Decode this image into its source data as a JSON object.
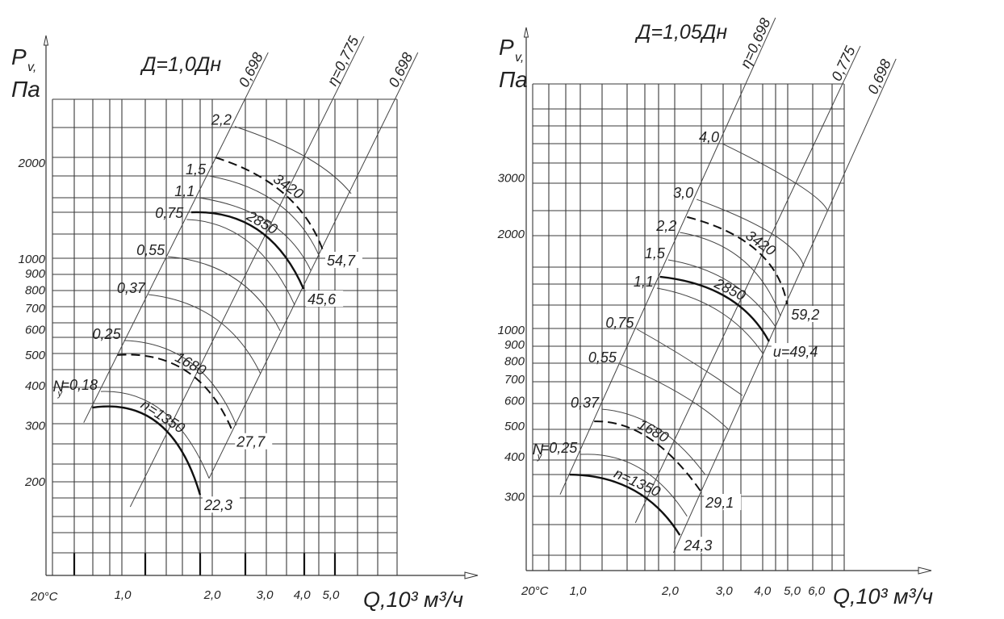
{
  "chart_data": [
    {
      "type": "line",
      "title": "Д=1,0Дн",
      "ylabel": {
        "symbol": "P",
        "subscript": "v,",
        "unit": "Па"
      },
      "xlabel": "Q,10³ м³/ч",
      "temperature_label": "20°C",
      "x_scale": "log",
      "y_scale": "log",
      "grid": true,
      "yticks": [
        {
          "value": 2000,
          "label": "2000"
        },
        {
          "value": 1000,
          "label": "1000"
        },
        {
          "value": 900,
          "label": "900"
        },
        {
          "value": 800,
          "label": "800"
        },
        {
          "value": 700,
          "label": "700"
        },
        {
          "value": 600,
          "label": "600"
        },
        {
          "value": 500,
          "label": "500"
        },
        {
          "value": 400,
          "label": "400"
        },
        {
          "value": 300,
          "label": "300"
        },
        {
          "value": 200,
          "label": "200"
        }
      ],
      "xticks": [
        {
          "value": 1.0,
          "label": "1,0"
        },
        {
          "value": 2.0,
          "label": "2,0"
        },
        {
          "value": 3.0,
          "label": "3,0"
        },
        {
          "value": 4.0,
          "label": "4,0"
        },
        {
          "value": 5.0,
          "label": "5,0"
        }
      ],
      "efficiency_lines": [
        {
          "label": "0,698",
          "from": [
            0.74,
            305
          ],
          "to": [
            3.08,
            4420
          ]
        },
        {
          "label": "η=0,775",
          "from": [
            1.06,
            166
          ],
          "to": [
            6.46,
            4970
          ]
        },
        {
          "label": "0,698",
          "from": [
            1.95,
            204
          ],
          "to": [
            9.8,
            4420
          ]
        }
      ],
      "power_curves": [
        {
          "label": "2,2",
          "points": [
            [
              2.38,
              2590
            ],
            [
              4.15,
              2070
            ],
            [
              5.85,
              1595
            ]
          ]
        },
        {
          "label": "1,5",
          "points": [
            [
              1.95,
              1812
            ],
            [
              3.31,
              1486
            ],
            [
              4.58,
              1012
            ]
          ]
        },
        {
          "label": "1,1",
          "points": [
            [
              1.79,
              1549
            ],
            [
              3.08,
              1300
            ],
            [
              4.28,
              916
            ]
          ]
        },
        {
          "label": "0,75",
          "points": [
            [
              1.64,
              1323
            ],
            [
              2.65,
              1124
            ],
            [
              3.78,
              713
            ]
          ]
        },
        {
          "label": "0,55",
          "points": [
            [
              1.42,
              1012
            ],
            [
              2.38,
              864
            ],
            [
              3.38,
              592
            ]
          ]
        },
        {
          "label": "0,37",
          "points": [
            [
              1.22,
              769
            ],
            [
              2.05,
              646
            ],
            [
              2.9,
              435
            ]
          ]
        },
        {
          "label": "0,25",
          "points": [
            [
              1.01,
              552
            ],
            [
              1.7,
              469
            ],
            [
              2.41,
              299
            ]
          ]
        },
        {
          "label": "=0,18",
          "prefix": "N",
          "prefix_sub": "y",
          "points": [
            [
              0.845,
              382
            ],
            [
              1.37,
              330
            ],
            [
              1.95,
              204
            ]
          ]
        }
      ],
      "speed_curves": [
        {
          "label": "3420",
          "end_label": "54,7",
          "style": "dashed",
          "points": [
            [
              2.05,
              2070
            ],
            [
              3.48,
              1595
            ],
            [
              4.7,
              1060
            ]
          ]
        },
        {
          "label": "2850",
          "end_label": "45,6",
          "style": "bold",
          "points": [
            [
              1.7,
              1394
            ],
            [
              2.85,
              1226
            ],
            [
              4.05,
              801
            ]
          ]
        },
        {
          "label": "1680",
          "end_label": "27,7",
          "style": "dashed",
          "points": [
            [
              0.96,
              497
            ],
            [
              1.64,
              442
            ],
            [
              2.34,
              286
            ]
          ]
        },
        {
          "label": "n=1350",
          "end_label": "22,3",
          "style": "bold",
          "points": [
            [
              0.79,
              340
            ],
            [
              1.32,
              303
            ],
            [
              1.82,
              181
            ]
          ]
        }
      ]
    },
    {
      "type": "line",
      "title": "Д=1,05Дн",
      "ylabel": {
        "symbol": "P",
        "subscript": "v,",
        "unit": "Па"
      },
      "xlabel": "Q,10³ м³/ч",
      "temperature_label": "20°C",
      "x_scale": "log",
      "y_scale": "log",
      "grid": true,
      "yticks": [
        {
          "value": 3000,
          "label": "3000"
        },
        {
          "value": 2000,
          "label": "2000"
        },
        {
          "value": 1000,
          "label": "1000"
        },
        {
          "value": 900,
          "label": "900"
        },
        {
          "value": 800,
          "label": "800"
        },
        {
          "value": 700,
          "label": "700"
        },
        {
          "value": 600,
          "label": "600"
        },
        {
          "value": 500,
          "label": "500"
        },
        {
          "value": 400,
          "label": "400"
        },
        {
          "value": 300,
          "label": "300"
        }
      ],
      "xticks": [
        {
          "value": 1.0,
          "label": "1,0"
        },
        {
          "value": 2.0,
          "label": "2,0"
        },
        {
          "value": 3.0,
          "label": "3,0"
        },
        {
          "value": 4.0,
          "label": "4,0"
        },
        {
          "value": 5.0,
          "label": "5,0"
        },
        {
          "value": 6.0,
          "label": "6,0"
        }
      ],
      "efficiency_lines": [
        {
          "label": "η=0,698",
          "from": [
            0.875,
            303
          ],
          "to": [
            4.41,
            9490
          ]
        },
        {
          "label": "0,775",
          "from": [
            1.54,
            247
          ],
          "to": [
            8.34,
            7740
          ]
        },
        {
          "label": "0,698",
          "from": [
            2.05,
            199
          ],
          "to": [
            10.9,
            7050
          ]
        }
      ],
      "power_curves": [
        {
          "label": "4,0",
          "points": [
            [
              2.96,
              3820
            ],
            [
              5.14,
              2870
            ],
            [
              6.5,
              2370
            ]
          ]
        },
        {
          "label": "3,0",
          "points": [
            [
              2.44,
              2555
            ],
            [
              4.31,
              1990
            ],
            [
              5.46,
              1575
            ]
          ]
        },
        {
          "label": "2,2",
          "points": [
            [
              2.15,
              2013
            ],
            [
              3.44,
              1651
            ],
            [
              4.58,
              1098
            ]
          ]
        },
        {
          "label": "1,5",
          "points": [
            [
              1.97,
              1651
            ],
            [
              3.14,
              1402
            ],
            [
              4.41,
              1018
            ]
          ]
        },
        {
          "label": "1,1",
          "points": [
            [
              1.81,
              1346
            ],
            [
              2.87,
              1143
            ],
            [
              4.01,
              840
            ]
          ]
        },
        {
          "label": "0,75",
          "points": [
            [
              1.56,
              1000
            ],
            [
              2.32,
              797
            ],
            [
              3.44,
              620
            ]
          ]
        },
        {
          "label": "0,55",
          "points": [
            [
              1.37,
              778
            ],
            [
              2.2,
              620
            ],
            [
              3.09,
              486
            ]
          ]
        },
        {
          "label": "0,37",
          "points": [
            [
              1.2,
              561
            ],
            [
              1.81,
              491
            ],
            [
              2.6,
              350
            ]
          ]
        },
        {
          "label": "=0,25",
          "prefix": "N",
          "prefix_sub": "y",
          "points": [
            [
              1.02,
              405
            ],
            [
              1.59,
              367
            ],
            [
              2.27,
              259
            ]
          ]
        }
      ],
      "speed_curves": [
        {
          "label": "3420",
          "end_label": "59,2",
          "style": "dashed",
          "points": [
            [
              2.27,
              2250
            ],
            [
              3.82,
              1770
            ],
            [
              4.81,
              1198
            ]
          ]
        },
        {
          "label": "2850",
          "end_label": "u=49,4",
          "style": "bold",
          "points": [
            [
              1.85,
              1461
            ],
            [
              3.05,
              1262
            ],
            [
              4.2,
              916
            ]
          ]
        },
        {
          "label": "1680",
          "end_label": "29,1",
          "style": "dashed",
          "points": [
            [
              1.13,
              514
            ],
            [
              1.71,
              455
            ],
            [
              2.53,
              308
            ]
          ]
        },
        {
          "label": "n=1350",
          "end_label": "24,3",
          "style": "bold",
          "points": [
            [
              0.94,
              350
            ],
            [
              1.52,
              313
            ],
            [
              2.15,
              226
            ]
          ]
        }
      ]
    }
  ]
}
